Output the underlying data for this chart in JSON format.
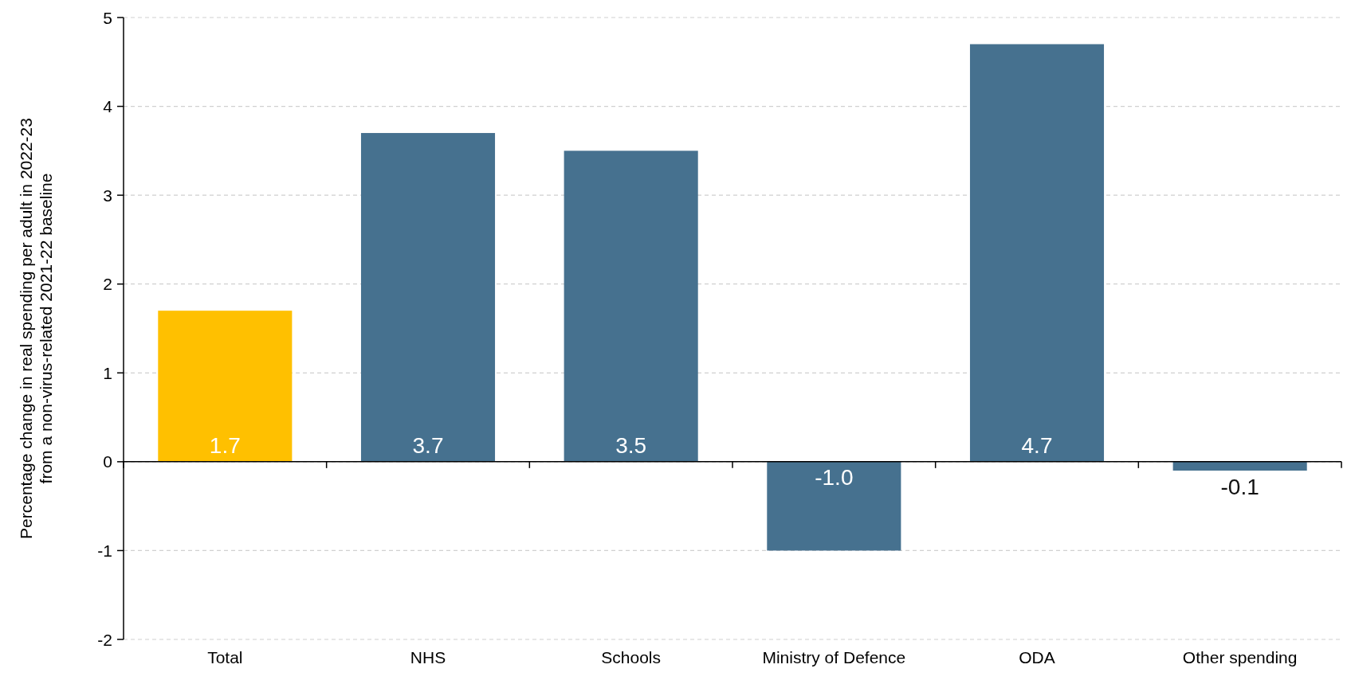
{
  "chart_data": {
    "type": "bar",
    "ylabel": "Percentage change in real spending per adult in 2022-23 from a non-virus-related 2021-22 baseline",
    "categories": [
      "Total",
      "NHS",
      "Schools",
      "Ministry of Defence",
      "ODA",
      "Other spending"
    ],
    "values": [
      1.7,
      3.7,
      3.5,
      -1.0,
      4.7,
      -0.1
    ],
    "colors": [
      "#ffc000",
      "#46718f",
      "#46718f",
      "#46718f",
      "#46718f",
      "#46718f"
    ],
    "value_labels": [
      "1.7",
      "3.7",
      "3.5",
      "-1.0",
      "4.7",
      "-0.1"
    ],
    "ylim": [
      -2,
      5
    ],
    "yticks": [
      -2,
      -1,
      0,
      1,
      2,
      3,
      4,
      5
    ],
    "grid": "y"
  }
}
